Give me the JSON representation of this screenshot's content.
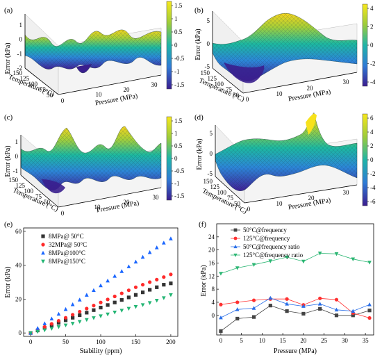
{
  "chart_data": [
    {
      "panel": "(a)",
      "type": "surface3d",
      "zlabel": "Error (kPa)",
      "xlabel": "Pressure (MPa)",
      "ylabel": "Temperature (°C)",
      "zticks": [
        "1",
        "0",
        "-1",
        "-2"
      ],
      "xticks": [
        "0",
        "10",
        "20",
        "30"
      ],
      "yticks": [
        "150",
        "125",
        "100",
        "75",
        "50"
      ],
      "colorbar_ticks": [
        "1.5",
        "1",
        "0.5",
        "0",
        "-0.5",
        "-1",
        "-1.5"
      ],
      "zlim": [
        -2,
        1.6
      ]
    },
    {
      "panel": "(b)",
      "type": "surface3d",
      "zlabel": "Error (kPa)",
      "xlabel": "Pressure (MPa)",
      "ylabel": "Temperature (°C)",
      "zticks": [
        "5",
        "0",
        "-5"
      ],
      "xticks": [
        "0",
        "10",
        "20",
        "30"
      ],
      "yticks": [
        "150",
        "125",
        "100",
        "75",
        "50"
      ],
      "colorbar_ticks": [
        "4",
        "2",
        "0",
        "-2",
        "-4"
      ],
      "zlim": [
        -5,
        5
      ]
    },
    {
      "panel": "(c)",
      "type": "surface3d",
      "zlabel": "Error (kPa)",
      "xlabel": "Pressure (MPa)",
      "ylabel": "Temperature (°C)",
      "zticks": [
        "1",
        "0",
        "-1"
      ],
      "xticks": [
        "0",
        "10",
        "20",
        "30"
      ],
      "yticks": [
        "150",
        "125",
        "100",
        "75",
        "50"
      ],
      "colorbar_ticks": [
        "1.5",
        "1",
        "0.5",
        "0",
        "-0.5",
        "-1",
        "-1.5"
      ],
      "zlim": [
        -1.6,
        1.6
      ]
    },
    {
      "panel": "(d)",
      "type": "surface3d",
      "zlabel": "Error (kPa)",
      "xlabel": "Pressure (MPa)",
      "ylabel": "Temperature (°C)",
      "zticks": [
        "5",
        "0",
        "-5"
      ],
      "xticks": [
        "0",
        "10",
        "20",
        "30"
      ],
      "yticks": [
        "150",
        "125",
        "100",
        "75",
        "50"
      ],
      "colorbar_ticks": [
        "6",
        "4",
        "2",
        "0",
        "-2",
        "-4",
        "-6"
      ],
      "zlim": [
        -6,
        7
      ]
    },
    {
      "panel": "(e)",
      "type": "scatter",
      "xlabel": "Stability (ppm)",
      "ylabel": "Error (kPa)",
      "xlim": [
        -10,
        210
      ],
      "ylim": [
        -2,
        62
      ],
      "xticks": [
        0,
        50,
        100,
        150,
        200
      ],
      "yticks": [
        0,
        20,
        40,
        60
      ],
      "legend_position": "top-left",
      "x": [
        0,
        10,
        20,
        30,
        40,
        50,
        60,
        70,
        80,
        90,
        100,
        110,
        120,
        130,
        140,
        150,
        160,
        170,
        180,
        190,
        200
      ],
      "series": [
        {
          "name": "8MPa@ 50°C",
          "color": "#333333",
          "marker": "square",
          "values": [
            0,
            1.5,
            3.0,
            4.5,
            6.0,
            7.5,
            9.0,
            10.5,
            12.0,
            13.5,
            15.0,
            16.5,
            18.0,
            19.5,
            21.0,
            22.5,
            24.0,
            25.5,
            27.0,
            28.5,
            29.3
          ]
        },
        {
          "name": "32MPa@ 50°C",
          "color": "#ff2a2a",
          "marker": "circle",
          "values": [
            0,
            1.8,
            3.6,
            5.4,
            7.2,
            9.0,
            10.8,
            12.6,
            14.4,
            16.2,
            18.0,
            19.8,
            21.6,
            23.4,
            25.2,
            27.0,
            28.5,
            30.0,
            31.5,
            33.0,
            34.6
          ]
        },
        {
          "name": "8MPa@100°C",
          "color": "#1a66ff",
          "marker": "triangle-up",
          "values": [
            0,
            2.8,
            5.6,
            8.4,
            11.2,
            14.0,
            16.8,
            19.6,
            22.4,
            25.2,
            28.0,
            30.8,
            33.6,
            36.4,
            39.2,
            42.0,
            44.8,
            47.6,
            50.4,
            53.2,
            55.7
          ]
        },
        {
          "name": "8MPa@150°C",
          "color": "#22b573",
          "marker": "triangle-down",
          "values": [
            0,
            0.8,
            1.7,
            2.6,
            3.6,
            4.6,
            5.6,
            6.7,
            7.8,
            8.9,
            10.0,
            11.1,
            12.2,
            13.3,
            14.4,
            15.5,
            16.6,
            17.8,
            19.2,
            20.7,
            22.5
          ]
        }
      ]
    },
    {
      "panel": "(f)",
      "type": "line",
      "xlabel": "Pressure (MPa)",
      "ylabel": "Error (kPa)",
      "xlim": [
        -1,
        37
      ],
      "ylim": [
        -6,
        28
      ],
      "xticks": [
        0,
        5,
        10,
        15,
        20,
        25,
        30,
        35
      ],
      "yticks": [
        0,
        4,
        8,
        12,
        16,
        20,
        24
      ],
      "legend_position": "top-left",
      "x": [
        0,
        4,
        8,
        12,
        16,
        20,
        24,
        28,
        32,
        36
      ],
      "series": [
        {
          "name": "50°C@frequency",
          "color": "#444444",
          "marker": "square",
          "values": [
            -4.8,
            -1.0,
            -0.5,
            3.0,
            1.3,
            0.5,
            2.0,
            0.0,
            0.0,
            1.5
          ]
        },
        {
          "name": "125°C@frequency",
          "color": "#ff3030",
          "marker": "circle",
          "values": [
            3.3,
            4.0,
            4.6,
            5.0,
            5.0,
            3.2,
            5.2,
            4.8,
            0.7,
            -0.8
          ]
        },
        {
          "name": "50°C@frequency ratio",
          "color": "#2a6fe8",
          "marker": "triangle-up",
          "values": [
            -0.7,
            1.8,
            2.2,
            5.3,
            3.5,
            2.8,
            3.5,
            1.7,
            1.3,
            3.3
          ]
        },
        {
          "name": "125°C@frequency ratio",
          "color": "#2bb673",
          "marker": "triangle-down",
          "values": [
            12.8,
            14.5,
            15.5,
            16.6,
            17.8,
            16.5,
            19.0,
            18.8,
            17.2,
            16.2
          ]
        }
      ]
    }
  ]
}
